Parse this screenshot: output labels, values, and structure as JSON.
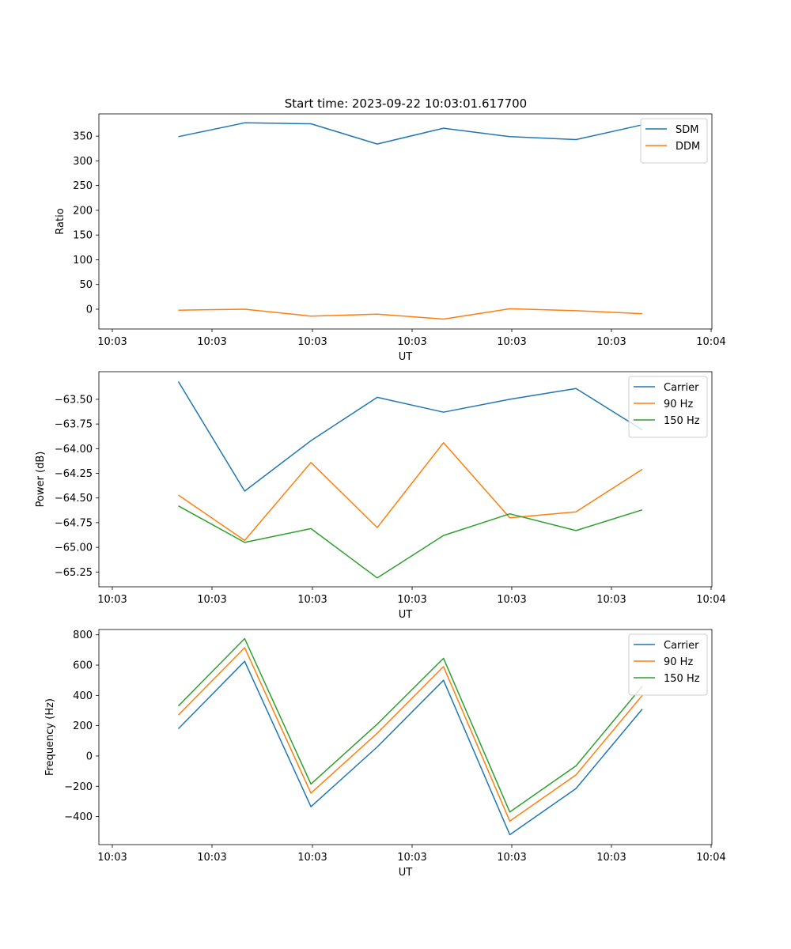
{
  "colors": {
    "blue": "#1f77b4",
    "orange": "#ff7f0e",
    "green": "#2ca02c",
    "axis": "#000000"
  },
  "chart_data": [
    {
      "type": "line",
      "title": "Start time: 2023-09-22 10:03:01.617700",
      "xlabel": "UT",
      "ylabel": "Ratio",
      "x_tick_labels": [
        "10:03",
        "10:03",
        "10:03",
        "10:03",
        "10:03",
        "10:03",
        "10:04"
      ],
      "x": [
        1,
        2,
        3,
        4,
        5,
        6,
        7,
        8
      ],
      "xlim": [
        -0.2,
        9.05
      ],
      "ylim": [
        -40,
        395
      ],
      "yticks": [
        0,
        50,
        100,
        150,
        200,
        250,
        300,
        350
      ],
      "ytick_labels": [
        "0",
        "50",
        "100",
        "150",
        "200",
        "250",
        "300",
        "350"
      ],
      "legend_loc": "top-right",
      "series": [
        {
          "name": "SDM",
          "color": "#1f77b4",
          "values": [
            349,
            377,
            375,
            334,
            366,
            349,
            343,
            373
          ]
        },
        {
          "name": "DDM",
          "color": "#ff7f0e",
          "values": [
            -2,
            0,
            -14,
            -10,
            -20,
            1,
            -3,
            -9
          ]
        }
      ]
    },
    {
      "type": "line",
      "title": "",
      "xlabel": "UT",
      "ylabel": "Power (dB)",
      "x_tick_labels": [
        "10:03",
        "10:03",
        "10:03",
        "10:03",
        "10:03",
        "10:03",
        "10:04"
      ],
      "x": [
        1,
        2,
        3,
        4,
        5,
        6,
        7,
        8
      ],
      "xlim": [
        -0.2,
        9.05
      ],
      "ylim": [
        -65.4,
        -63.22
      ],
      "yticks": [
        -65.25,
        -65.0,
        -64.75,
        -64.5,
        -64.25,
        -64.0,
        -63.75,
        -63.5
      ],
      "ytick_labels": [
        "−65.25",
        "−65.00",
        "−64.75",
        "−64.50",
        "−64.25",
        "−64.00",
        "−63.75",
        "−63.50"
      ],
      "legend_loc": "top-right",
      "series": [
        {
          "name": "Carrier",
          "color": "#1f77b4",
          "values": [
            -63.32,
            -64.43,
            -63.92,
            -63.48,
            -63.63,
            -63.5,
            -63.39,
            -63.81
          ]
        },
        {
          "name": "90 Hz",
          "color": "#ff7f0e",
          "values": [
            -64.47,
            -64.93,
            -64.14,
            -64.8,
            -63.94,
            -64.7,
            -64.64,
            -64.21
          ]
        },
        {
          "name": "150 Hz",
          "color": "#2ca02c",
          "values": [
            -64.58,
            -64.95,
            -64.81,
            -65.31,
            -64.88,
            -64.66,
            -64.83,
            -64.62
          ]
        }
      ]
    },
    {
      "type": "line",
      "title": "",
      "xlabel": "UT",
      "ylabel": "Frequency (Hz)",
      "x_tick_labels": [
        "10:03",
        "10:03",
        "10:03",
        "10:03",
        "10:03",
        "10:03",
        "10:04"
      ],
      "x": [
        1,
        2,
        3,
        4,
        5,
        6,
        7,
        8
      ],
      "xlim": [
        -0.2,
        9.05
      ],
      "ylim": [
        -585,
        835
      ],
      "yticks": [
        -400,
        -200,
        0,
        200,
        400,
        600,
        800
      ],
      "ytick_labels": [
        "−400",
        "−200",
        "0",
        "200",
        "400",
        "600",
        "800"
      ],
      "legend_loc": "top-right",
      "series": [
        {
          "name": "Carrier",
          "color": "#1f77b4",
          "values": [
            180,
            625,
            -335,
            60,
            500,
            -520,
            -215,
            310
          ]
        },
        {
          "name": "90 Hz",
          "color": "#ff7f0e",
          "values": [
            270,
            715,
            -245,
            150,
            590,
            -430,
            -125,
            400
          ]
        },
        {
          "name": "150 Hz",
          "color": "#2ca02c",
          "values": [
            330,
            775,
            -185,
            210,
            645,
            -370,
            -65,
            460
          ]
        }
      ]
    }
  ]
}
